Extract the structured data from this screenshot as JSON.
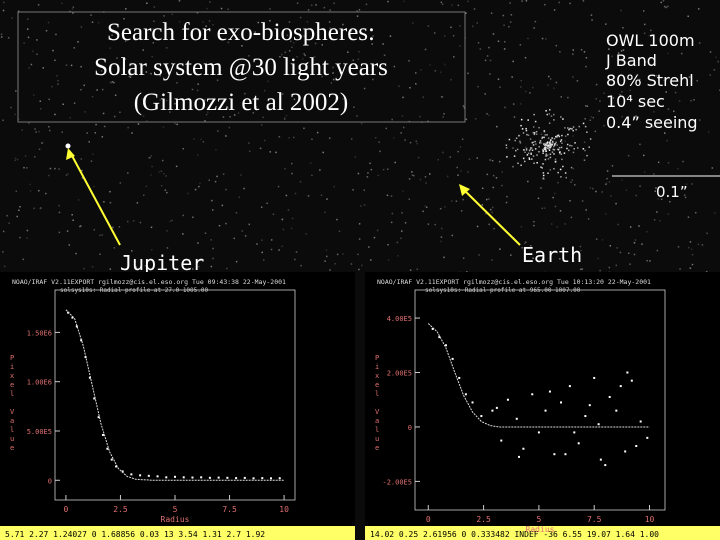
{
  "slide": {
    "title_lines": [
      "Search for exo-biospheres:",
      "Solar system @30 light years",
      "(Gilmozzi et al 2002)"
    ],
    "specs": [
      "OWL 100m",
      "J Band",
      "80% Strehl",
      "10⁴ sec",
      "0.4” seeing"
    ],
    "scale_label": "0.1”",
    "labels": [
      "Jupiter",
      "Earth"
    ]
  },
  "chart_data": [
    {
      "type": "scatter",
      "header": "NOAO/IRAF V2.11EXPORT rgilmozz@cis.el.eso.org Tue 09:43:38 22-May-2001",
      "subtitle": "solsys10s: Radial profile at 27.0 1005.00",
      "xlabel": "Radius",
      "ylabel": "Pixel Value",
      "status": "5.71  2.27  1.24027  0  1.68856  0.03  13  3.54  1.31  2.7  1.92",
      "xlim": [
        -0.5,
        10.5
      ],
      "ylim": [
        -200000,
        1930000
      ],
      "xticks": [
        0,
        2.5,
        5,
        7.5,
        10
      ],
      "yticks": [
        0,
        {
          "value": 500000,
          "label": "5.00E5"
        },
        {
          "value": 1000000,
          "label": "1.00E6"
        },
        {
          "value": 1500000,
          "label": "1.50E6"
        }
      ],
      "series": [
        {
          "color": "#ffffff",
          "x": [
            0.1,
            0.3,
            0.5,
            0.7,
            0.9,
            1.1,
            1.3,
            1.5,
            1.7,
            1.9,
            2.1,
            2.3,
            2.6,
            3.0,
            3.4,
            3.8,
            4.2,
            4.6,
            5.0,
            5.4,
            5.8,
            6.2,
            6.6,
            7.0,
            7.4,
            7.8,
            8.2,
            8.6,
            9.0,
            9.4,
            9.8
          ],
          "values": [
            1700000,
            1650000,
            1560000,
            1420000,
            1250000,
            1040000,
            830000,
            640000,
            460000,
            320000,
            210000,
            140000,
            90000,
            60000,
            50000,
            45000,
            40000,
            30000,
            35000,
            30000,
            28000,
            30000,
            25000,
            27000,
            25000,
            22000,
            24000,
            20000,
            22000,
            20000,
            21000
          ]
        },
        {
          "color": "#dddddd",
          "style": "line",
          "x": [
            0,
            0.4,
            0.8,
            1.2,
            1.6,
            2.0,
            2.4,
            2.8,
            3.2,
            4,
            5,
            6,
            7,
            8,
            9,
            10
          ],
          "values": [
            1730000,
            1640000,
            1360000,
            970000,
            580000,
            290000,
            120000,
            40000,
            10000,
            0,
            0,
            0,
            0,
            0,
            0,
            0
          ]
        }
      ]
    },
    {
      "type": "scatter",
      "header": "NOAO/IRAF V2.11EXPORT rgilmozz@cis.el.eso.org Tue 10:13:20 22-May-2001",
      "subtitle": "solsys10s: Radial profile at 965.00 1007.00",
      "xlabel": "Radius",
      "ylabel": "Pixel Value",
      "status": "14.02  0.25  2.61956  0  0.333482  INDEF  -36  6.55  19.07  1.64  1.00",
      "xlim": [
        -0.6,
        10.7
      ],
      "ylim": [
        -305000,
        503000
      ],
      "xticks": [
        0,
        2.5,
        5,
        7.5,
        10
      ],
      "yticks": [
        {
          "value": -200000,
          "label": "-2.00E5"
        },
        0,
        {
          "value": 200000,
          "label": "2.00E5"
        },
        {
          "value": 400000,
          "label": "4.00E5"
        }
      ],
      "series": [
        {
          "color": "#ffffff",
          "x": [
            0.2,
            0.5,
            0.8,
            1.1,
            1.4,
            1.7,
            2.0,
            2.4,
            2.9,
            3.3,
            3.6,
            4.0,
            4.3,
            4.7,
            5.0,
            5.3,
            5.7,
            6.0,
            6.4,
            6.8,
            7.1,
            7.5,
            7.8,
            8.2,
            8.5,
            8.9,
            9.2,
            9.6,
            9.9,
            4.1,
            5.5,
            6.6,
            7.3,
            8.0,
            8.7,
            9.4,
            3.1,
            6.2,
            7.7,
            9.0
          ],
          "values": [
            360000,
            330000,
            300000,
            250000,
            180000,
            120000,
            90000,
            40000,
            60000,
            -50000,
            100000,
            30000,
            -80000,
            120000,
            -20000,
            60000,
            -100000,
            90000,
            150000,
            -60000,
            40000,
            180000,
            -120000,
            110000,
            60000,
            -90000,
            170000,
            20000,
            -40000,
            -110000,
            130000,
            -20000,
            80000,
            -140000,
            150000,
            -70000,
            70000,
            -100000,
            10000,
            200000
          ]
        },
        {
          "color": "#dddddd",
          "style": "line",
          "x": [
            0,
            0.4,
            0.8,
            1.2,
            1.6,
            2.0,
            2.4,
            2.8,
            3.2,
            4,
            5,
            6,
            7,
            8,
            9,
            10
          ],
          "values": [
            380000,
            350000,
            290000,
            200000,
            115000,
            55000,
            20000,
            5000,
            0,
            0,
            0,
            0,
            0,
            0,
            0,
            0
          ]
        }
      ]
    }
  ]
}
